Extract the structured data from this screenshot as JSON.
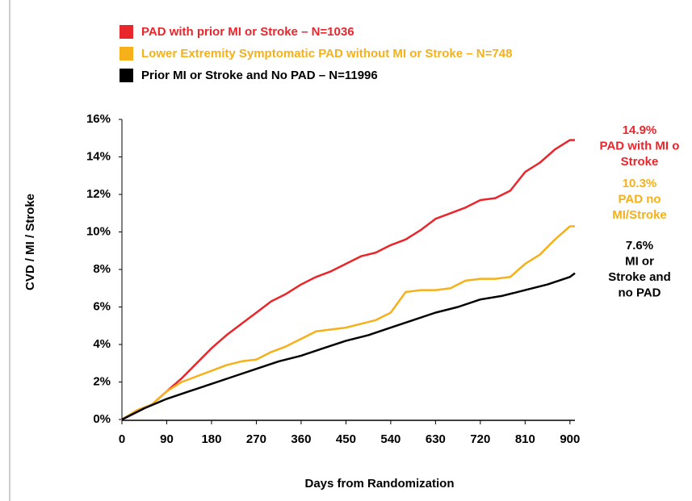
{
  "chart_data": {
    "type": "line",
    "xlabel": "Days from Randomization",
    "ylabel": "CVD / MI / Stroke",
    "xlim": [
      0,
      910
    ],
    "xticks": [
      0,
      90,
      180,
      270,
      360,
      450,
      540,
      630,
      720,
      810,
      900
    ],
    "ylim": [
      0,
      16
    ],
    "yticks": [
      {
        "value": 0,
        "label": "0%"
      },
      {
        "value": 2,
        "label": "2%"
      },
      {
        "value": 4,
        "label": "4%"
      },
      {
        "value": 6,
        "label": "6%"
      },
      {
        "value": 8,
        "label": "8%"
      },
      {
        "value": 10,
        "label": "10%"
      },
      {
        "value": 12,
        "label": "12%"
      },
      {
        "value": 14,
        "label": "14%"
      },
      {
        "value": 16,
        "label": "16%"
      }
    ],
    "grid": false,
    "series": [
      {
        "name": "PAD with prior MI or Stroke – N=1036",
        "color": "#e8262b",
        "x": [
          0,
          30,
          60,
          90,
          120,
          150,
          180,
          210,
          240,
          270,
          300,
          330,
          360,
          390,
          420,
          450,
          480,
          510,
          540,
          570,
          600,
          630,
          660,
          690,
          720,
          750,
          780,
          810,
          840,
          870,
          900,
          910
        ],
        "values": [
          0,
          0.4,
          0.8,
          1.5,
          2.2,
          3.0,
          3.8,
          4.5,
          5.1,
          5.7,
          6.3,
          6.7,
          7.2,
          7.6,
          7.9,
          8.3,
          8.7,
          8.9,
          9.3,
          9.6,
          10.1,
          10.7,
          11.0,
          11.3,
          11.7,
          11.8,
          12.2,
          13.2,
          13.7,
          14.4,
          14.9,
          14.9
        ]
      },
      {
        "name": "Lower Extremity Symptomatic PAD without MI or Stroke  – N=748",
        "color": "#f5b01a",
        "x": [
          0,
          30,
          60,
          90,
          120,
          150,
          180,
          210,
          240,
          270,
          300,
          330,
          360,
          390,
          420,
          450,
          480,
          510,
          540,
          570,
          600,
          630,
          660,
          690,
          720,
          750,
          780,
          810,
          840,
          870,
          900,
          910
        ],
        "values": [
          0,
          0.5,
          0.8,
          1.5,
          2.0,
          2.3,
          2.6,
          2.9,
          3.1,
          3.2,
          3.6,
          3.9,
          4.3,
          4.7,
          4.8,
          4.9,
          5.1,
          5.3,
          5.7,
          6.8,
          6.9,
          6.9,
          7.0,
          7.4,
          7.5,
          7.5,
          7.6,
          8.3,
          8.8,
          9.6,
          10.3,
          10.3
        ]
      },
      {
        "name": "Prior MI or Stroke and No PAD – N=11996",
        "color": "#000000",
        "x": [
          0,
          45,
          90,
          135,
          180,
          225,
          270,
          315,
          360,
          405,
          450,
          495,
          540,
          585,
          630,
          675,
          720,
          765,
          810,
          855,
          900,
          910
        ],
        "values": [
          0,
          0.6,
          1.1,
          1.5,
          1.9,
          2.3,
          2.7,
          3.1,
          3.4,
          3.8,
          4.2,
          4.5,
          4.9,
          5.3,
          5.7,
          6.0,
          6.4,
          6.6,
          6.9,
          7.2,
          7.6,
          7.8
        ]
      }
    ],
    "annotations": [
      {
        "lines": [
          "14.9%",
          "PAD with MI o",
          "Stroke"
        ],
        "color": "#e8262b"
      },
      {
        "lines": [
          "10.3%",
          "PAD no",
          "MI/Stroke"
        ],
        "color": "#f5b01a"
      },
      {
        "lines": [
          "7.6%",
          "MI or",
          "Stroke and",
          "no PAD"
        ],
        "color": "#000000"
      }
    ]
  }
}
